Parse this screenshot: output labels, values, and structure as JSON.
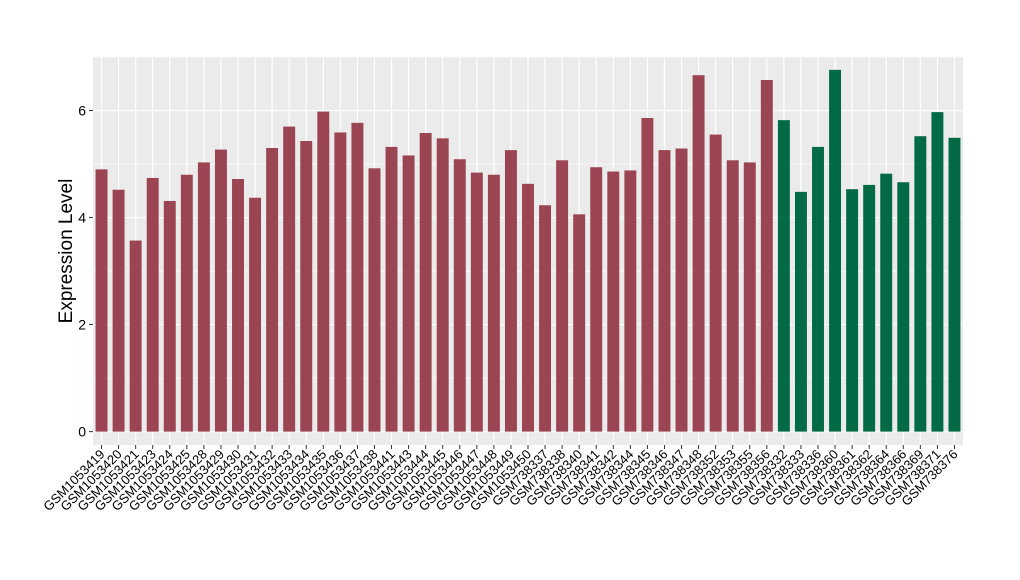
{
  "chart_data": {
    "type": "bar",
    "ylabel": "Expression Level",
    "xlabel": "",
    "ylim": [
      -0.25,
      7.0
    ],
    "yticks": [
      0,
      2,
      4,
      6
    ],
    "categories": [
      "GSM1053419",
      "GSM1053420",
      "GSM1053421",
      "GSM1053423",
      "GSM1053424",
      "GSM1053425",
      "GSM1053428",
      "GSM1053429",
      "GSM1053430",
      "GSM1053431",
      "GSM1053432",
      "GSM1053433",
      "GSM1053434",
      "GSM1053435",
      "GSM1053436",
      "GSM1053437",
      "GSM1053438",
      "GSM1053441",
      "GSM1053443",
      "GSM1053444",
      "GSM1053445",
      "GSM1053446",
      "GSM1053447",
      "GSM1053448",
      "GSM1053449",
      "GSM1053450",
      "GSM738337",
      "GSM738338",
      "GSM738340",
      "GSM738341",
      "GSM738342",
      "GSM738344",
      "GSM738345",
      "GSM738346",
      "GSM738347",
      "GSM738348",
      "GSM738352",
      "GSM738353",
      "GSM738355",
      "GSM738356",
      "GSM738332",
      "GSM738333",
      "GSM738336",
      "GSM738360",
      "GSM738361",
      "GSM738362",
      "GSM738364",
      "GSM738366",
      "GSM738369",
      "GSM738371",
      "GSM738376"
    ],
    "values": [
      4.9,
      4.52,
      3.57,
      4.74,
      4.31,
      4.8,
      5.03,
      5.27,
      4.72,
      4.37,
      5.3,
      5.7,
      5.43,
      5.98,
      5.59,
      5.77,
      4.92,
      5.32,
      5.16,
      5.58,
      5.48,
      5.09,
      4.84,
      4.8,
      5.26,
      4.63,
      4.23,
      5.07,
      4.06,
      4.94,
      4.86,
      4.88,
      5.86,
      5.26,
      5.29,
      6.66,
      5.55,
      5.07,
      5.03,
      6.57,
      5.82,
      4.48,
      5.32,
      6.76,
      4.53,
      4.61,
      4.82,
      4.66,
      5.52,
      5.97,
      5.49
    ],
    "groups": [
      "a",
      "a",
      "a",
      "a",
      "a",
      "a",
      "a",
      "a",
      "a",
      "a",
      "a",
      "a",
      "a",
      "a",
      "a",
      "a",
      "a",
      "a",
      "a",
      "a",
      "a",
      "a",
      "a",
      "a",
      "a",
      "a",
      "a",
      "a",
      "a",
      "a",
      "a",
      "a",
      "a",
      "a",
      "a",
      "a",
      "a",
      "a",
      "a",
      "a",
      "b",
      "b",
      "b",
      "b",
      "b",
      "b",
      "b",
      "b",
      "b",
      "b",
      "b"
    ],
    "group_colors": {
      "a": "#9b4452",
      "b": "#026a45"
    },
    "panel_color": "#ebebeb",
    "gridline_color": "#ffffff",
    "grid": true,
    "legend": "none"
  }
}
